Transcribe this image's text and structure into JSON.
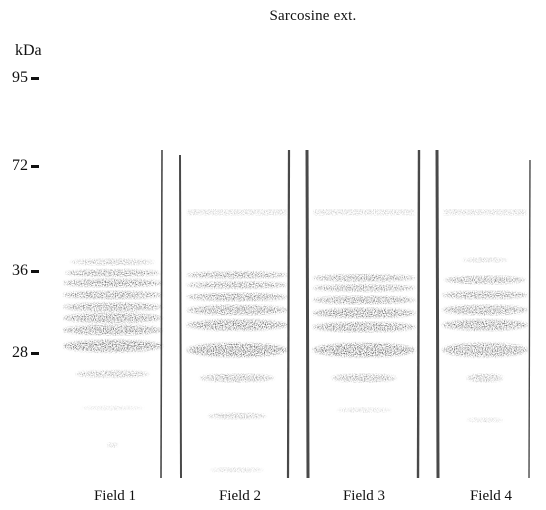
{
  "title": "Sarcosine ext.",
  "unit_label": "kDa",
  "markers": [
    {
      "label": "95",
      "kda": 95
    },
    {
      "label": "72",
      "kda": 72
    },
    {
      "label": "36",
      "kda": 36
    },
    {
      "label": "28",
      "kda": 28
    }
  ],
  "lanes": [
    {
      "label": "Field 1"
    },
    {
      "label": "Field 2"
    },
    {
      "label": "Field 3"
    },
    {
      "label": "Field 4"
    }
  ],
  "colors": {
    "band": "#1a1a1a",
    "background": "#ffffff",
    "lane_border": "#2a2a2a"
  }
}
